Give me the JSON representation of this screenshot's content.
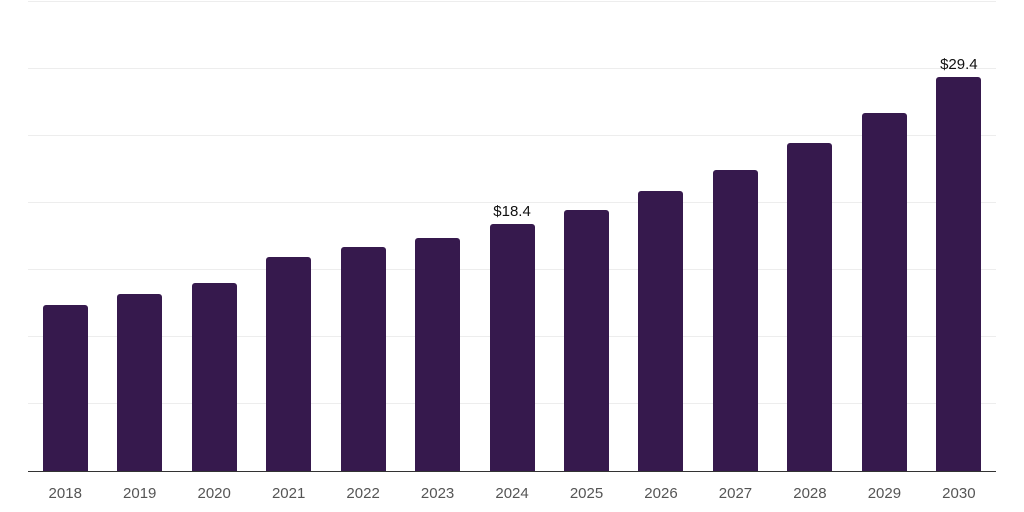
{
  "chart_data": {
    "type": "bar",
    "categories": [
      "2018",
      "2019",
      "2020",
      "2021",
      "2022",
      "2023",
      "2024",
      "2025",
      "2026",
      "2027",
      "2028",
      "2029",
      "2030"
    ],
    "values": [
      12.4,
      13.2,
      14.0,
      16.0,
      16.7,
      17.4,
      18.4,
      19.5,
      20.9,
      22.5,
      24.5,
      26.7,
      29.4
    ],
    "data_labels": [
      {
        "category": "2024",
        "text": "$18.4"
      },
      {
        "category": "2030",
        "text": "$29.4"
      }
    ],
    "title": "",
    "xlabel": "",
    "ylabel": "",
    "ylim": [
      0,
      35
    ],
    "gridline_step": 5,
    "grid": true,
    "legend": false,
    "colors": {
      "bar": "#36194d",
      "gridline": "#ededed",
      "axis_line": "#333333",
      "tick_label": "#555555",
      "data_label": "#111111",
      "background": "#ffffff"
    }
  }
}
